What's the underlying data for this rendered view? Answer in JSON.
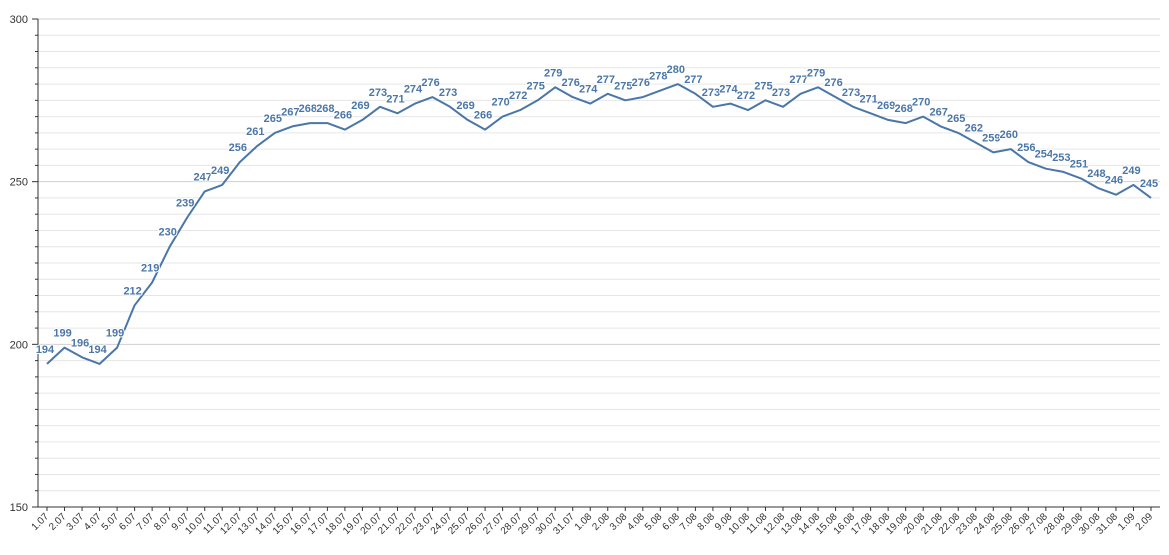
{
  "chart_data": {
    "type": "line",
    "categories": [
      "1.07",
      "2.07",
      "3.07",
      "4.07",
      "5.07",
      "6.07",
      "7.07",
      "8.07",
      "9.07",
      "10.07",
      "11.07",
      "12.07",
      "13.07",
      "14.07",
      "15.07",
      "16.07",
      "17.07",
      "18.07",
      "19.07",
      "20.07",
      "21.07",
      "22.07",
      "23.07",
      "24.07",
      "25.07",
      "26.07",
      "27.07",
      "28.07",
      "29.07",
      "30.07",
      "31.07",
      "1.08",
      "2.08",
      "3.08",
      "4.08",
      "5.08",
      "6.08",
      "7.08",
      "8.08",
      "9.08",
      "10.08",
      "11.08",
      "12.08",
      "13.08",
      "14.08",
      "15.08",
      "16.08",
      "17.08",
      "18.08",
      "19.08",
      "20.08",
      "21.08",
      "22.08",
      "23.08",
      "24.08",
      "25.08",
      "26.08",
      "27.08",
      "28.08",
      "29.08",
      "30.08",
      "31.08",
      "1.09",
      "2.09"
    ],
    "series": [
      {
        "values": [
          194,
          199,
          196,
          194,
          199,
          212,
          219,
          230,
          239,
          247,
          249,
          256,
          261,
          265,
          267,
          268,
          268,
          266,
          269,
          273,
          271,
          274,
          276,
          273,
          269,
          266,
          270,
          272,
          275,
          279,
          276,
          274,
          277,
          275,
          276,
          278,
          280,
          277,
          273,
          274,
          272,
          275,
          273,
          277,
          279,
          276,
          273,
          271,
          269,
          268,
          270,
          267,
          265,
          262,
          259,
          260,
          256,
          254,
          253,
          251,
          248,
          246,
          249,
          245
        ],
        "color": "#4a76a8"
      }
    ],
    "ylim": [
      150,
      300
    ],
    "yticks": [
      150,
      200,
      250,
      300
    ],
    "y_minor_step": 5,
    "grid": true,
    "legend": "none",
    "title": "",
    "xlabel": "",
    "ylabel": ""
  }
}
